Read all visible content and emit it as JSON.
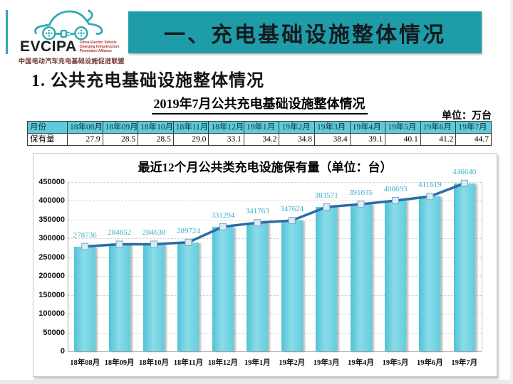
{
  "logo": {
    "brand": "EVCIPA",
    "tagline_lines": [
      "China Electric Vehicle",
      "Charging Infrastructure",
      "Promotion Alliance"
    ],
    "chinese_name": "中国电动汽车充电基础设施促进联盟",
    "icon": "ev-car-charging-icon",
    "accent_color": "#2AA9B2",
    "tagline_color": "#B03030",
    "chinese_name_color": "#703434"
  },
  "banner": {
    "title": "一、充电基础设施整体情况",
    "bg_color": "#1E9DA8",
    "text_color": "#171A1F"
  },
  "section": {
    "heading": "1. 公共充电基础设施整体情况"
  },
  "table_section": {
    "title": "2019年7月公共充电基础设施整体情况",
    "unit_label": "单位：万台",
    "header_bg_color": "#5FCBDA",
    "row_label_header": "月份",
    "row_label_value": "保有量",
    "months": [
      "18年08月",
      "18年09月",
      "18年10月",
      "18年11月",
      "18年12月",
      "19年1月",
      "19年2月",
      "19年3月",
      "19年4月",
      "19年5月",
      "19年6月",
      "19年7月"
    ],
    "values": [
      "27.9",
      "28.5",
      "28.5",
      "29.0",
      "33.1",
      "34.2",
      "34.8",
      "38.4",
      "39.1",
      "40.1",
      "41.2",
      "44.7"
    ]
  },
  "chart_data": {
    "type": "bar",
    "overlay": "line",
    "title": "最近12个月公共类充电设施保有量（单位：台）",
    "categories": [
      "18年08月",
      "18年09月",
      "18年10月",
      "18年11月",
      "18年12月",
      "19年1月",
      "19年2月",
      "19年3月",
      "19年4月",
      "19年5月",
      "19年6月",
      "19年7月"
    ],
    "values": [
      278736,
      284652,
      284638,
      289724,
      331294,
      341763,
      347624,
      383571,
      391035,
      400693,
      411619,
      446640
    ],
    "ylim": [
      0,
      450000
    ],
    "ytick_step": 50000,
    "grid": "horizontal-dashed",
    "legend": "none",
    "bar_color": "#66D0DF",
    "line_color": "#2A6CA5",
    "marker": "square",
    "marker_fill": "#D9EBF5",
    "data_label_color": "#3EB1C8"
  }
}
